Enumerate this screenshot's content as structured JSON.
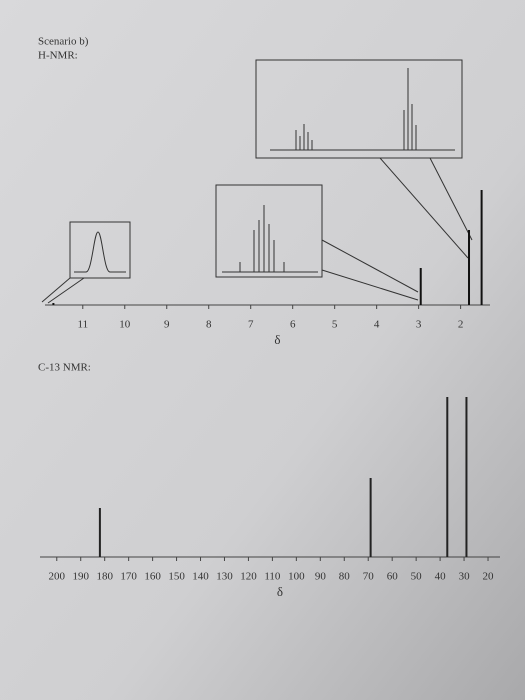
{
  "header": "Scenario b)",
  "chart_data": [
    {
      "type": "stem",
      "title": "H-NMR:",
      "xlabel": "δ",
      "x": [
        11.7,
        2.95,
        1.8,
        1.5
      ],
      "values": [
        2,
        37,
        75,
        115
      ],
      "color": "#111111",
      "xlim": [
        11.9,
        1.3
      ],
      "xticks": [
        11,
        10,
        9,
        8,
        7,
        6,
        5,
        4,
        3,
        2
      ]
    },
    {
      "type": "stem",
      "title": "C-13 NMR:",
      "xlabel": "δ",
      "x": [
        182,
        69,
        37,
        29
      ],
      "values": [
        49,
        79,
        160,
        160
      ],
      "color": "#222222",
      "xlim": [
        207,
        15
      ],
      "xticks": [
        200,
        190,
        180,
        170,
        160,
        150,
        140,
        130,
        120,
        110,
        100,
        90,
        80,
        70,
        60,
        50,
        40,
        30,
        20
      ]
    }
  ]
}
